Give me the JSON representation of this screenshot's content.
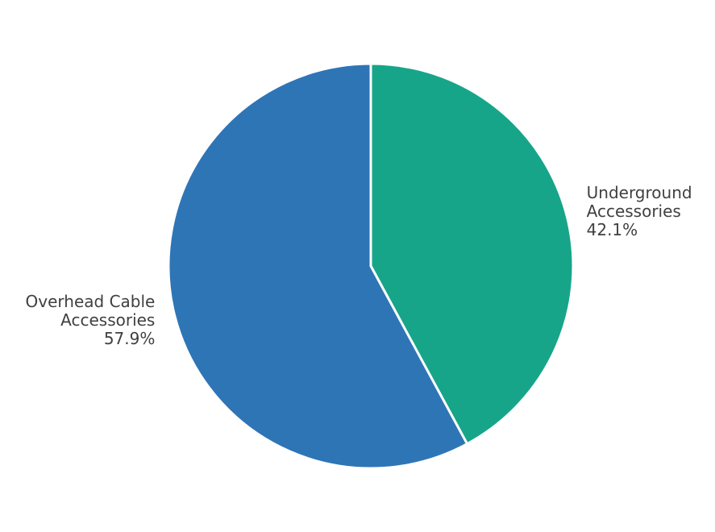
{
  "chart_data": {
    "type": "pie",
    "categories": [
      "Underground Accessories",
      "Overhead Cable Accessories"
    ],
    "values": [
      42.1,
      57.9
    ],
    "value_labels": [
      "42.1%",
      "57.9%"
    ],
    "colors": [
      "#17a589",
      "#2e75b6"
    ]
  }
}
